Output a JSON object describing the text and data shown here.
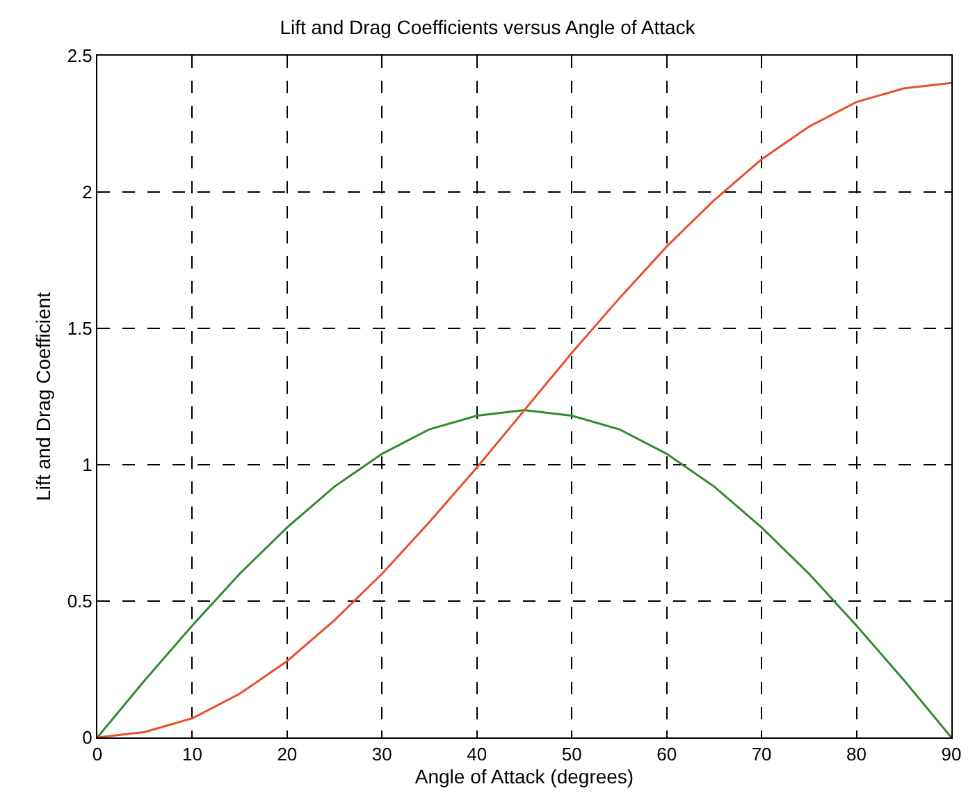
{
  "chart_data": {
    "type": "line",
    "title": "Lift and Drag Coefficients versus Angle of Attack",
    "xlabel": "Angle of Attack (degrees)",
    "ylabel": "Lift and Drag Coefficient",
    "x": [
      0,
      5,
      10,
      15,
      20,
      25,
      30,
      35,
      40,
      45,
      50,
      55,
      60,
      65,
      70,
      75,
      80,
      85,
      90
    ],
    "series": [
      {
        "color": "#2e8b2e",
        "values": [
          0,
          0.21,
          0.41,
          0.6,
          0.77,
          0.92,
          1.04,
          1.13,
          1.18,
          1.2,
          1.18,
          1.13,
          1.04,
          0.92,
          0.77,
          0.6,
          0.41,
          0.21,
          0
        ]
      },
      {
        "color": "#e8502a",
        "values": [
          0,
          0.02,
          0.07,
          0.16,
          0.28,
          0.43,
          0.6,
          0.79,
          0.99,
          1.2,
          1.41,
          1.61,
          1.8,
          1.97,
          2.12,
          2.24,
          2.33,
          2.38,
          2.4
        ]
      }
    ],
    "xlim": [
      0,
      90
    ],
    "xticks": [
      0,
      10,
      20,
      30,
      40,
      50,
      60,
      70,
      80,
      90
    ],
    "ylim": [
      0,
      2.5
    ],
    "yticks": [
      0,
      0.5,
      1,
      1.5,
      2,
      2.5
    ],
    "grid": true,
    "line_style": "solid",
    "marker": "none"
  }
}
